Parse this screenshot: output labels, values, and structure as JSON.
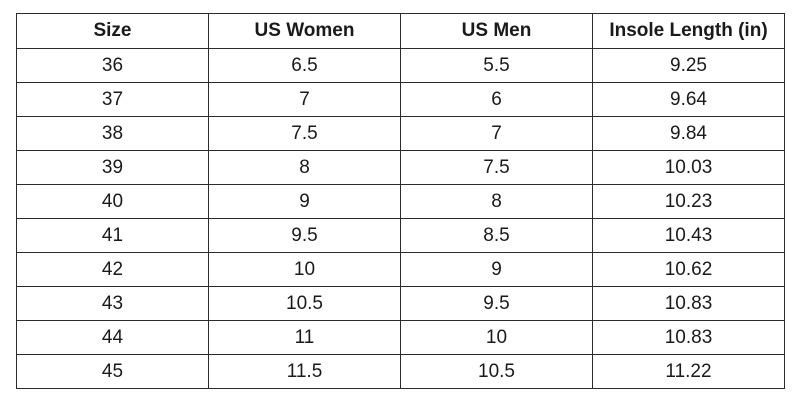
{
  "table": {
    "headers": [
      "Size",
      "US Women",
      "US Men",
      "Insole Length (in)"
    ],
    "rows": [
      [
        "36",
        "6.5",
        "5.5",
        "9.25"
      ],
      [
        "37",
        "7",
        "6",
        "9.64"
      ],
      [
        "38",
        "7.5",
        "7",
        "9.84"
      ],
      [
        "39",
        "8",
        "7.5",
        "10.03"
      ],
      [
        "40",
        "9",
        "8",
        "10.23"
      ],
      [
        "41",
        "9.5",
        "8.5",
        "10.43"
      ],
      [
        "42",
        "10",
        "9",
        "10.62"
      ],
      [
        "43",
        "10.5",
        "9.5",
        "10.83"
      ],
      [
        "44",
        "11",
        "10",
        "10.83"
      ],
      [
        "45",
        "11.5",
        "10.5",
        "11.22"
      ]
    ]
  }
}
